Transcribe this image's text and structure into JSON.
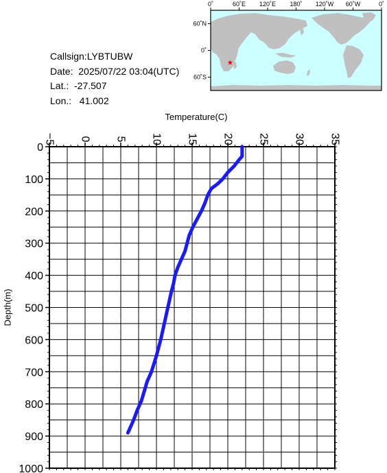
{
  "info": {
    "callsign": "Callsign:LYBTUBW",
    "date": "Date:  2025/07/22 03:04(UTC)",
    "lat": "Lat.:  -27.507",
    "lon": "Lon.:   41.002"
  },
  "map": {
    "top_labels": [
      "0˚",
      "60˚E",
      "120˚E",
      "180˚",
      "120˚W",
      "60˚W",
      "0˚"
    ],
    "side_labels": [
      "60˚N",
      "0˚",
      "60˚S"
    ],
    "marker": {
      "lon": 41.002,
      "lat": -27.507
    },
    "ocean_color": "#ccffff",
    "land_color": "#c0c0c0",
    "marker_color": "#ff0000"
  },
  "chart_data": {
    "type": "line",
    "xlabel": "Temperature(C)",
    "ylabel": "Depth(m)",
    "xlim": [
      -5,
      35
    ],
    "ylim": [
      0,
      1000
    ],
    "x_ticks": [
      "-5",
      "0",
      "5",
      "10",
      "15",
      "20",
      "25",
      "30",
      "35"
    ],
    "y_ticks": [
      "0",
      "100",
      "200",
      "300",
      "400",
      "500",
      "600",
      "700",
      "800",
      "900",
      "1000"
    ],
    "y_inverted": true,
    "grid": true,
    "line_color": "#1a1aff",
    "series": [
      {
        "x": [
          22.0,
          22.0,
          21.6,
          20.9,
          20.0,
          19.3,
          18.6,
          17.7,
          17.2,
          16.8,
          16.3,
          15.7,
          15.1,
          14.6,
          14.3,
          14.0,
          13.5,
          13.0,
          12.6,
          12.4,
          12.1,
          11.6,
          11.1,
          10.6,
          10.0,
          9.3,
          8.7,
          8.3,
          7.9,
          7.3,
          6.8,
          6.4,
          6.0
        ],
        "y": [
          0,
          30,
          40,
          60,
          80,
          100,
          115,
          130,
          150,
          175,
          200,
          225,
          250,
          275,
          300,
          325,
          350,
          375,
          400,
          425,
          450,
          500,
          550,
          600,
          650,
          700,
          730,
          760,
          790,
          820,
          850,
          870,
          890
        ]
      }
    ]
  }
}
